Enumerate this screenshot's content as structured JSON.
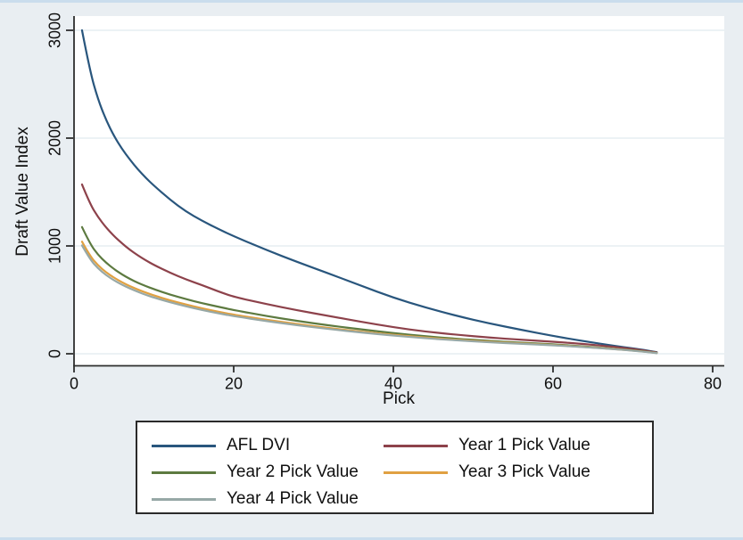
{
  "figure": {
    "background": "#e9eef2",
    "plot_background": "#ffffff",
    "grid_color": "#e6edf2",
    "axis_color": "#2e2e2e",
    "text_color": "#101010",
    "edge_strip_color": "#cadded"
  },
  "chart_data": {
    "type": "line",
    "title": "",
    "xlabel": "Pick",
    "ylabel": "Draft Value Index",
    "xlim": [
      0,
      80
    ],
    "ylim": [
      0,
      3000
    ],
    "x_ticks": [
      0,
      20,
      40,
      60,
      80
    ],
    "y_ticks": [
      0,
      1000,
      2000,
      3000
    ],
    "grid": "horizontal",
    "legend_position": "bottom",
    "x": [
      1,
      2,
      3,
      4,
      5,
      6,
      7,
      8,
      9,
      10,
      12,
      14,
      16,
      18,
      20,
      24,
      28,
      32,
      36,
      40,
      44,
      48,
      52,
      56,
      60,
      64,
      68,
      71,
      73
    ],
    "series": [
      {
        "name": "AFL DVI",
        "color": "#29567d",
        "values": [
          3000,
          2620,
          2360,
          2170,
          2020,
          1900,
          1800,
          1710,
          1630,
          1560,
          1430,
          1320,
          1235,
          1160,
          1090,
          965,
          850,
          742,
          630,
          520,
          430,
          350,
          282,
          222,
          165,
          115,
          70,
          40,
          15
        ]
      },
      {
        "name": "Year 1 Pick Value",
        "color": "#8d424b",
        "values": [
          1570,
          1390,
          1268,
          1172,
          1092,
          1024,
          964,
          912,
          866,
          824,
          752,
          690,
          638,
          580,
          528,
          462,
          402,
          350,
          296,
          246,
          206,
          176,
          150,
          130,
          112,
          90,
          62,
          35,
          12
        ]
      },
      {
        "name": "Year 2 Pick Value",
        "color": "#5d7a40",
        "values": [
          1175,
          1020,
          918,
          845,
          786,
          736,
          694,
          658,
          627,
          599,
          549,
          507,
          470,
          437,
          406,
          351,
          304,
          262,
          226,
          191,
          162,
          139,
          119,
          103,
          88,
          68,
          45,
          25,
          8
        ]
      },
      {
        "name": "Year 3 Pick Value",
        "color": "#e0a142",
        "values": [
          1040,
          906,
          820,
          756,
          706,
          663,
          627,
          595,
          567,
          541,
          496,
          457,
          422,
          391,
          362,
          316,
          275,
          238,
          205,
          176,
          150,
          129,
          111,
          96,
          82,
          63,
          42,
          23,
          7
        ]
      },
      {
        "name": "Year 4 Pick Value",
        "color": "#97a8a6",
        "values": [
          1005,
          876,
          792,
          730,
          681,
          640,
          605,
          574,
          546,
          521,
          478,
          440,
          406,
          376,
          349,
          304,
          264,
          229,
          197,
          169,
          144,
          124,
          106,
          92,
          79,
          61,
          41,
          22,
          6
        ]
      }
    ]
  }
}
